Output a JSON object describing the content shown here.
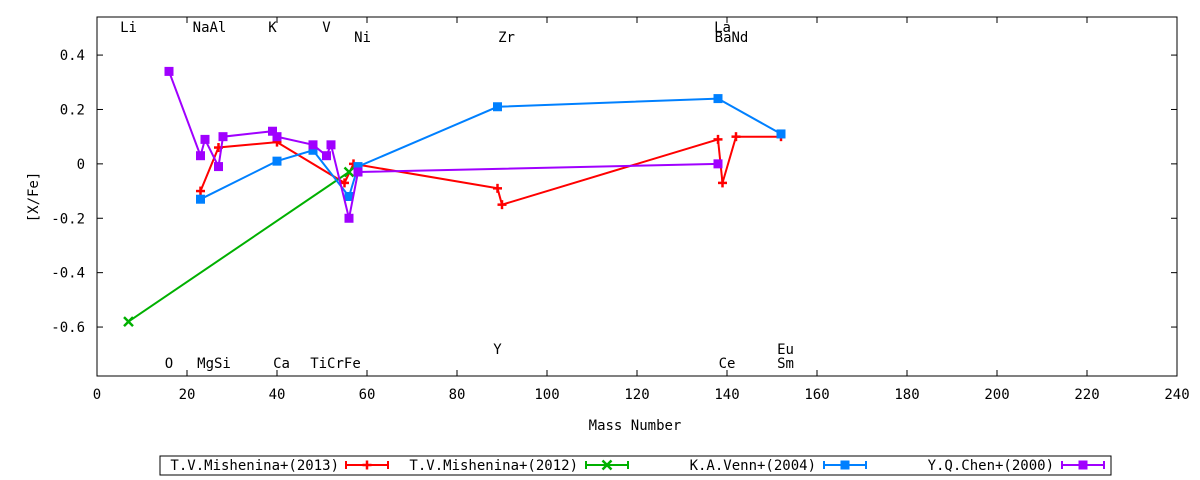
{
  "chart_data": {
    "type": "line",
    "xlabel": "Mass Number",
    "ylabel": "[X/Fe]",
    "xlim": [
      0,
      240
    ],
    "ylim": [
      -0.78,
      0.54
    ],
    "xticks": [
      0,
      20,
      40,
      60,
      80,
      100,
      120,
      140,
      160,
      180,
      200,
      220,
      240
    ],
    "xtick_labels": [
      "0",
      "20",
      "40",
      "60",
      "80",
      "100",
      "120",
      "140",
      "160",
      "180",
      "200",
      "220",
      "240"
    ],
    "yticks": [
      0.4,
      0.2,
      0,
      -0.2,
      -0.4,
      -0.6
    ],
    "ytick_labels": [
      "0.4",
      "0.2",
      "0",
      "-0.2",
      "-0.4",
      "-0.6"
    ],
    "grid": false,
    "legend_position": "bottom",
    "element_labels": {
      "top": [
        {
          "text": "Li",
          "x": 7,
          "row": 1
        },
        {
          "text": "NaAl",
          "x": 25,
          "row": 1
        },
        {
          "text": "K",
          "x": 39,
          "row": 1
        },
        {
          "text": "V",
          "x": 51,
          "row": 1
        },
        {
          "text": "La",
          "x": 139,
          "row": 1
        },
        {
          "text": "Ni",
          "x": 59,
          "row": 2
        },
        {
          "text": "Zr",
          "x": 91,
          "row": 2
        },
        {
          "text": "BaNd",
          "x": 141,
          "row": 2
        }
      ],
      "bottom": [
        {
          "text": "Y",
          "x": 89,
          "row": 1
        },
        {
          "text": "Eu",
          "x": 153,
          "row": 1
        },
        {
          "text": "O",
          "x": 16,
          "row": 2
        },
        {
          "text": "MgSi",
          "x": 26,
          "row": 2
        },
        {
          "text": "Ca",
          "x": 41,
          "row": 2
        },
        {
          "text": "TiCrFe",
          "x": 53,
          "row": 2
        },
        {
          "text": "Ce",
          "x": 140,
          "row": 2
        },
        {
          "text": "Sm",
          "x": 153,
          "row": 2
        }
      ]
    },
    "series": [
      {
        "name": "T.V.Mishenina+(2013)",
        "color": "#ff0000",
        "marker": "plus",
        "points": [
          [
            23,
            -0.1
          ],
          [
            27,
            0.06
          ],
          [
            40,
            0.08
          ],
          [
            55,
            -0.07
          ],
          [
            57,
            0.0
          ],
          [
            89,
            -0.09
          ],
          [
            90,
            -0.15
          ],
          [
            138,
            0.09
          ],
          [
            139,
            -0.07
          ],
          [
            142,
            0.1
          ],
          [
            152,
            0.1
          ]
        ]
      },
      {
        "name": "T.V.Mishenina+(2012)",
        "color": "#00b000",
        "marker": "x",
        "points": [
          [
            7,
            -0.58
          ],
          [
            56,
            -0.03
          ]
        ]
      },
      {
        "name": "K.A.Venn+(2004)",
        "color": "#0080ff",
        "marker": "square",
        "points": [
          [
            23,
            -0.13
          ],
          [
            40,
            0.01
          ],
          [
            48,
            0.05
          ],
          [
            56,
            -0.12
          ],
          [
            58,
            -0.01
          ],
          [
            89,
            0.21
          ],
          [
            138,
            0.24
          ],
          [
            152,
            0.11
          ]
        ]
      },
      {
        "name": "Y.Q.Chen+(2000)",
        "color": "#a000ff",
        "marker": "square",
        "points": [
          [
            16,
            0.34
          ],
          [
            23,
            0.03
          ],
          [
            24,
            0.09
          ],
          [
            27,
            -0.01
          ],
          [
            28,
            0.1
          ],
          [
            39,
            0.12
          ],
          [
            40,
            0.1
          ],
          [
            48,
            0.07
          ],
          [
            51,
            0.03
          ],
          [
            52,
            0.07
          ],
          [
            56,
            -0.2
          ],
          [
            58,
            -0.03
          ],
          [
            138,
            0.0
          ]
        ]
      }
    ]
  }
}
